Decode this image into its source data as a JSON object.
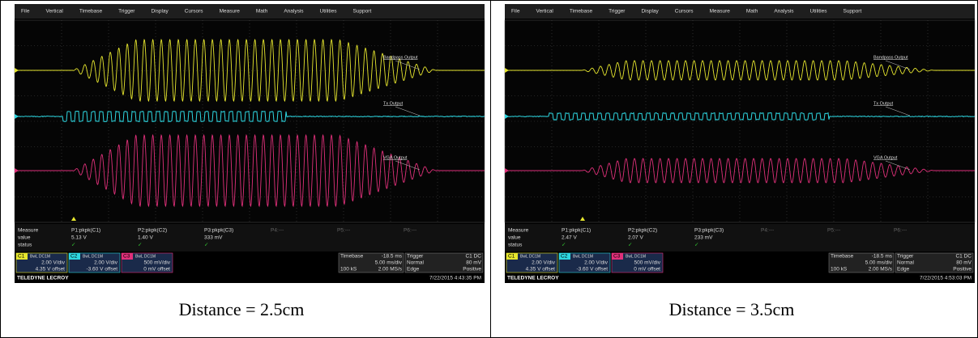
{
  "panels": [
    {
      "menu": [
        "File",
        "Vertical",
        "Timebase",
        "Trigger",
        "Display",
        "Cursors",
        "Measure",
        "Math",
        "Analysis",
        "Utilities",
        "Support"
      ],
      "traces": [
        "Bandpass Output",
        "Tx Output",
        "VGA Output"
      ],
      "measure": {
        "labels": [
          "Measure",
          "value",
          "status"
        ],
        "params": [
          {
            "name": "P1:pkpk(C1)",
            "value": "5.13 V",
            "status": "✓"
          },
          {
            "name": "P2:pkpk(C2)",
            "value": "1.40 V",
            "status": "✓"
          },
          {
            "name": "P3:pkpk(C3)",
            "value": "333 mV",
            "status": "✓"
          },
          {
            "name": "P4:---"
          },
          {
            "name": "P5:---"
          },
          {
            "name": "P6:---"
          }
        ]
      },
      "channels": [
        {
          "name": "C1",
          "coupling": "BwL DC1M",
          "scale": "2.00 V/div",
          "offset": "4.35 V offset"
        },
        {
          "name": "C2",
          "coupling": "BwL DC1M",
          "scale": "2.00 V/div",
          "offset": "-3.60 V offset"
        },
        {
          "name": "C3",
          "coupling": "BwL DC1M",
          "scale": "500 mV/div",
          "offset": "0 mV offset"
        }
      ],
      "timebase": {
        "title": "Timebase",
        "delay": "-18.5 ms",
        "scale": "5.00 ms/div",
        "samples": "100 kS",
        "rate": "2.00 MS/s"
      },
      "trigger": {
        "title": "Trigger",
        "source": "C1 DC",
        "mode": "Normal",
        "level": "80 mV",
        "kind": "Edge",
        "slope": "Positive"
      },
      "brand": "TELEDYNE LECROY",
      "timestamp": "7/22/2015 4:43:35 PM",
      "caption": "Distance = 2.5cm"
    },
    {
      "menu": [
        "File",
        "Vertical",
        "Timebase",
        "Trigger",
        "Display",
        "Cursors",
        "Measure",
        "Math",
        "Analysis",
        "Utilities",
        "Support"
      ],
      "traces": [
        "Bandpass Output",
        "Tx Output",
        "VGA Output"
      ],
      "measure": {
        "labels": [
          "Measure",
          "value",
          "status"
        ],
        "params": [
          {
            "name": "P1:pkpk(C1)",
            "value": "2.47 V",
            "status": "✓"
          },
          {
            "name": "P2:pkpk(C2)",
            "value": "2.07 V",
            "status": "✓"
          },
          {
            "name": "P3:pkpk(C3)",
            "value": "233 mV",
            "status": "✓"
          },
          {
            "name": "P4:---"
          },
          {
            "name": "P5:---"
          },
          {
            "name": "P6:---"
          }
        ]
      },
      "channels": [
        {
          "name": "C1",
          "coupling": "BwL DC1M",
          "scale": "2.00 V/div",
          "offset": "4.35 V offset"
        },
        {
          "name": "C2",
          "coupling": "BwL DC1M",
          "scale": "2.00 V/div",
          "offset": "-3.60 V offset"
        },
        {
          "name": "C3",
          "coupling": "BwL DC1M",
          "scale": "500 mV/div",
          "offset": "0 mV offset"
        }
      ],
      "timebase": {
        "title": "Timebase",
        "delay": "-18.5 ms",
        "scale": "5.00 ms/div",
        "samples": "100 kS",
        "rate": "2.00 MS/s"
      },
      "trigger": {
        "title": "Trigger",
        "source": "C1 DC",
        "mode": "Normal",
        "level": "80 mV",
        "kind": "Edge",
        "slope": "Positive"
      },
      "brand": "TELEDYNE LECROY",
      "timestamp": "7/22/2015 4:53:03 PM",
      "caption": "Distance = 3.5cm"
    }
  ]
}
